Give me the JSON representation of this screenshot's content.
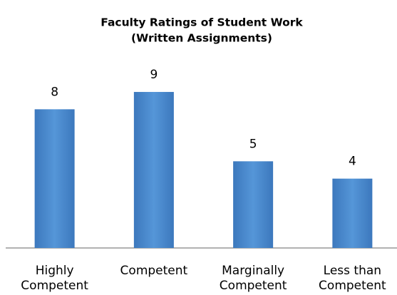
{
  "chart_data": {
    "type": "bar",
    "title": [
      "Faculty Ratings of Student Work",
      "(Written Assignments)"
    ],
    "categories": [
      "Highly Competent",
      "Competent",
      "Marginally Competent",
      "Less than Competent"
    ],
    "values": [
      8,
      9,
      5,
      4
    ],
    "color": "#4a86c8"
  }
}
